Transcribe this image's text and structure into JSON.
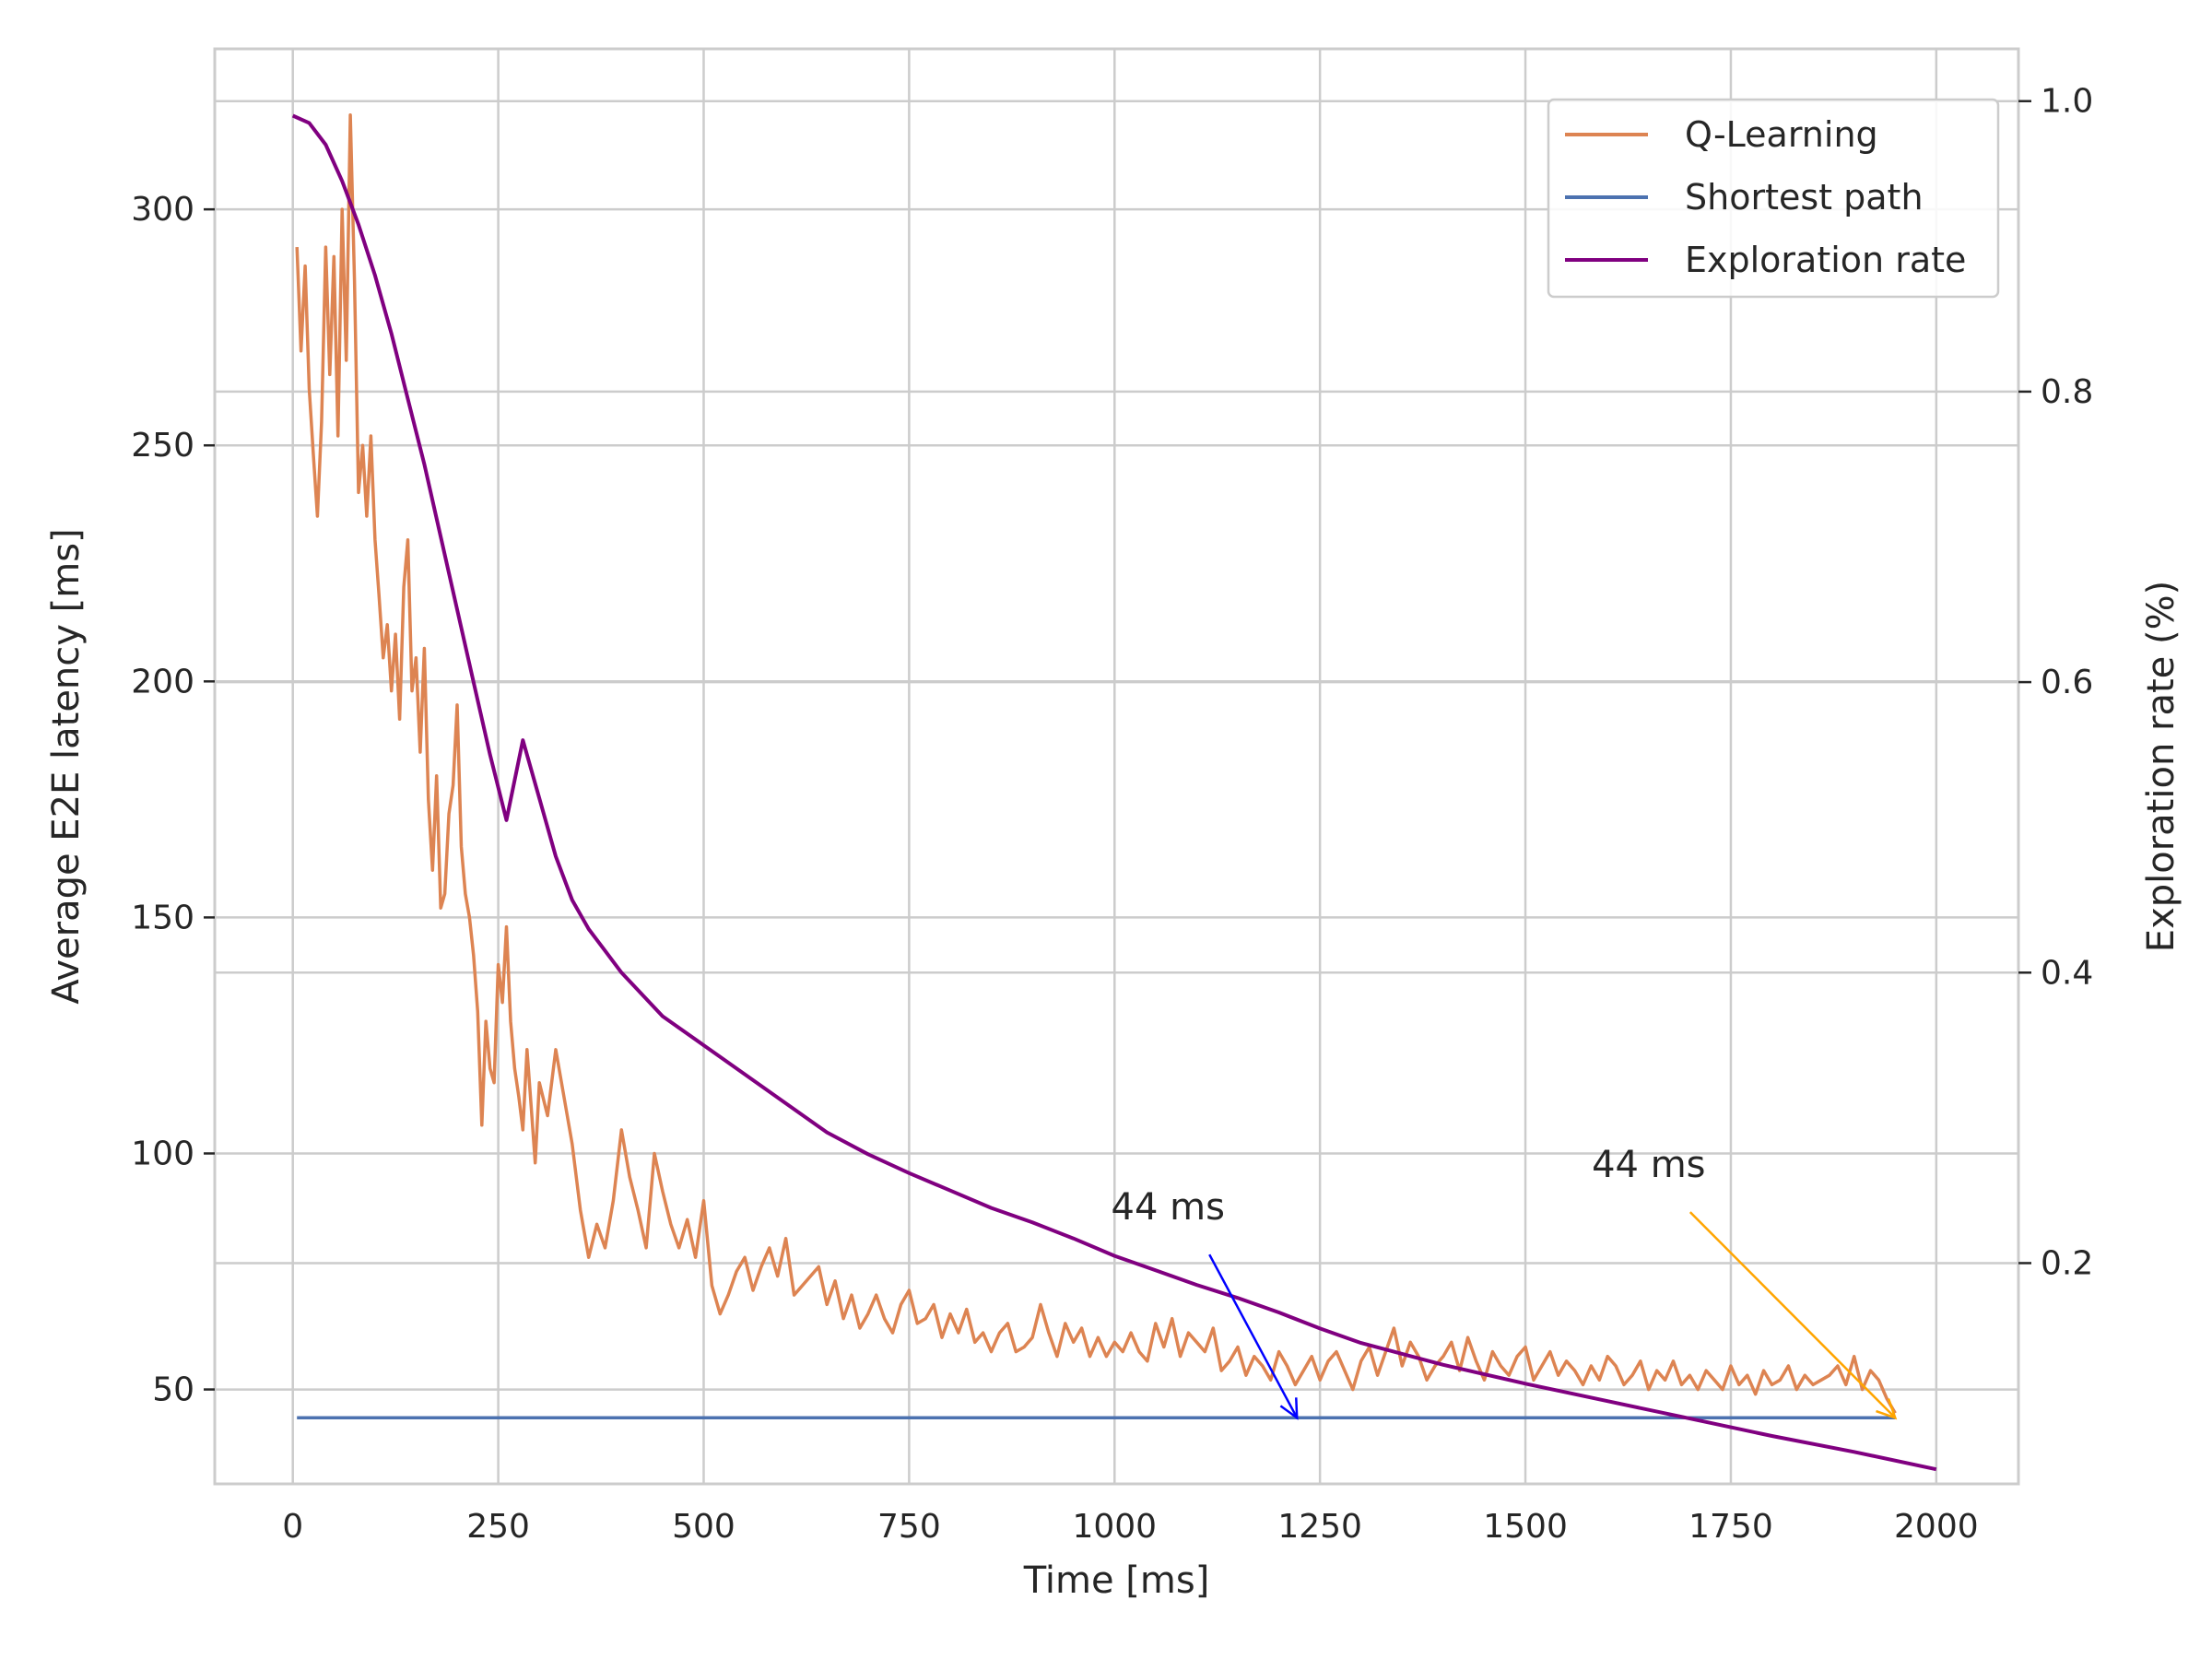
{
  "chart_data": {
    "type": "line",
    "xlabel": "Time [ms]",
    "ylabel": "Average E2E latency [ms]",
    "y2label": "Exploration rate (%)",
    "xlim": [
      -95,
      2100
    ],
    "ylim": [
      30,
      334
    ],
    "y2lim": [
      0.048,
      1.036
    ],
    "xticks": [
      0,
      250,
      500,
      750,
      1000,
      1250,
      1500,
      1750,
      2000
    ],
    "yticks": [
      50,
      100,
      150,
      200,
      250,
      300
    ],
    "y2ticks": [
      0.2,
      0.4,
      0.6,
      0.8,
      1.0
    ],
    "grid": true,
    "legend_position": "top-right",
    "series": [
      {
        "name": "Q-Learning",
        "axis": "left",
        "color": "#dd8452",
        "x": [
          5,
          10,
          15,
          20,
          25,
          30,
          35,
          40,
          45,
          50,
          55,
          60,
          65,
          70,
          75,
          80,
          85,
          90,
          95,
          100,
          105,
          110,
          115,
          120,
          125,
          130,
          135,
          140,
          145,
          150,
          155,
          160,
          165,
          170,
          175,
          180,
          185,
          190,
          195,
          200,
          205,
          210,
          215,
          220,
          225,
          230,
          235,
          240,
          245,
          250,
          255,
          260,
          265,
          270,
          275,
          280,
          285,
          290,
          295,
          300,
          310,
          320,
          330,
          340,
          350,
          360,
          370,
          380,
          390,
          400,
          410,
          420,
          430,
          440,
          450,
          460,
          470,
          480,
          490,
          500,
          510,
          520,
          530,
          540,
          550,
          560,
          570,
          580,
          590,
          600,
          610,
          620,
          630,
          640,
          650,
          660,
          670,
          680,
          690,
          700,
          710,
          720,
          730,
          740,
          750,
          760,
          770,
          780,
          790,
          800,
          810,
          820,
          830,
          840,
          850,
          860,
          870,
          880,
          890,
          900,
          910,
          920,
          930,
          940,
          950,
          960,
          970,
          980,
          990,
          1000,
          1010,
          1020,
          1030,
          1040,
          1050,
          1060,
          1070,
          1080,
          1090,
          1100,
          1110,
          1120,
          1130,
          1140,
          1150,
          1160,
          1170,
          1180,
          1190,
          1200,
          1210,
          1220,
          1230,
          1240,
          1250,
          1260,
          1270,
          1280,
          1290,
          1300,
          1310,
          1320,
          1330,
          1340,
          1350,
          1360,
          1370,
          1380,
          1390,
          1400,
          1410,
          1420,
          1430,
          1440,
          1450,
          1460,
          1470,
          1480,
          1490,
          1500,
          1510,
          1520,
          1530,
          1540,
          1550,
          1560,
          1570,
          1580,
          1590,
          1600,
          1610,
          1620,
          1630,
          1640,
          1650,
          1660,
          1670,
          1680,
          1690,
          1700,
          1710,
          1720,
          1730,
          1740,
          1750,
          1760,
          1770,
          1780,
          1790,
          1800,
          1810,
          1820,
          1830,
          1840,
          1850,
          1860,
          1870,
          1880,
          1890,
          1900,
          1910,
          1920,
          1930,
          1940,
          1950
        ],
        "y": [
          292,
          270,
          288,
          262,
          248,
          235,
          255,
          292,
          265,
          290,
          252,
          300,
          268,
          320,
          285,
          240,
          250,
          235,
          252,
          230,
          218,
          205,
          212,
          198,
          210,
          192,
          220,
          230,
          198,
          205,
          185,
          207,
          175,
          160,
          180,
          152,
          155,
          172,
          178,
          195,
          165,
          155,
          150,
          142,
          130,
          106,
          128,
          118,
          115,
          140,
          132,
          148,
          128,
          118,
          112,
          105,
          122,
          110,
          98,
          115,
          108,
          122,
          112,
          102,
          88,
          78,
          85,
          80,
          90,
          105,
          95,
          88,
          80,
          100,
          92,
          85,
          80,
          86,
          78,
          90,
          72,
          66,
          70,
          75,
          78,
          71,
          76,
          80,
          74,
          82,
          70,
          72,
          74,
          76,
          68,
          73,
          65,
          70,
          63,
          66,
          70,
          65,
          62,
          68,
          71,
          64,
          65,
          68,
          61,
          66,
          62,
          67,
          60,
          62,
          58,
          62,
          64,
          58,
          59,
          61,
          68,
          62,
          57,
          64,
          60,
          63,
          57,
          61,
          57,
          60,
          58,
          62,
          58,
          56,
          64,
          59,
          65,
          57,
          62,
          60,
          58,
          63,
          54,
          56,
          59,
          53,
          57,
          55,
          52,
          58,
          55,
          51,
          54,
          57,
          52,
          56,
          58,
          54,
          50,
          56,
          59,
          53,
          58,
          63,
          55,
          60,
          57,
          52,
          55,
          57,
          60,
          54,
          61,
          56,
          52,
          58,
          55,
          53,
          57,
          59,
          52,
          55,
          58,
          53,
          56,
          54,
          51,
          55,
          52,
          57,
          55,
          51,
          53,
          56,
          50,
          54,
          52,
          56,
          51,
          53,
          50,
          54,
          52,
          50,
          55,
          51,
          53,
          49,
          54,
          51,
          52,
          55,
          50,
          53,
          51,
          52,
          53,
          55,
          51,
          57,
          50,
          54,
          52,
          48,
          45
        ]
      },
      {
        "name": "Shortest path",
        "axis": "left",
        "color": "#4c72b0",
        "x": [
          5,
          100,
          200,
          300,
          400,
          500,
          600,
          700,
          800,
          900,
          1000,
          1100,
          1200,
          1300,
          1400,
          1500,
          1600,
          1700,
          1800,
          1900,
          1950
        ],
        "y": [
          44,
          44,
          44,
          44,
          44,
          44,
          44,
          44,
          44,
          44,
          44,
          44,
          44,
          44,
          44,
          44,
          44,
          44,
          44,
          44,
          44
        ]
      },
      {
        "name": "Exploration rate",
        "axis": "right",
        "color": "#800080",
        "x": [
          0,
          20,
          40,
          60,
          80,
          100,
          120,
          140,
          160,
          180,
          200,
          220,
          240,
          260,
          280,
          300,
          320,
          340,
          360,
          380,
          400,
          450,
          500,
          550,
          600,
          650,
          700,
          750,
          800,
          850,
          900,
          950,
          1000,
          1050,
          1100,
          1150,
          1200,
          1250,
          1300,
          1400,
          1500,
          1600,
          1700,
          1800,
          1900,
          2000
        ],
        "y": [
          0.99,
          0.985,
          0.97,
          0.945,
          0.915,
          0.88,
          0.84,
          0.795,
          0.75,
          0.7,
          0.65,
          0.6,
          0.55,
          0.505,
          0.56,
          0.52,
          0.48,
          0.45,
          0.43,
          0.415,
          0.4,
          0.37,
          0.35,
          0.33,
          0.31,
          0.29,
          0.275,
          0.262,
          0.25,
          0.238,
          0.228,
          0.217,
          0.205,
          0.195,
          0.185,
          0.176,
          0.166,
          0.155,
          0.145,
          0.13,
          0.117,
          0.105,
          0.093,
          0.081,
          0.07,
          0.058
        ]
      }
    ],
    "annotations": [
      {
        "text": "44 ms",
        "color": "#0000ff",
        "text_x": 1065,
        "text_y": 86,
        "target_x": 1222,
        "target_y": 44
      },
      {
        "text": "44 ms",
        "color": "#ffa500",
        "text_x": 1650,
        "text_y": 95,
        "target_x": 1950,
        "target_y": 44
      }
    ]
  }
}
